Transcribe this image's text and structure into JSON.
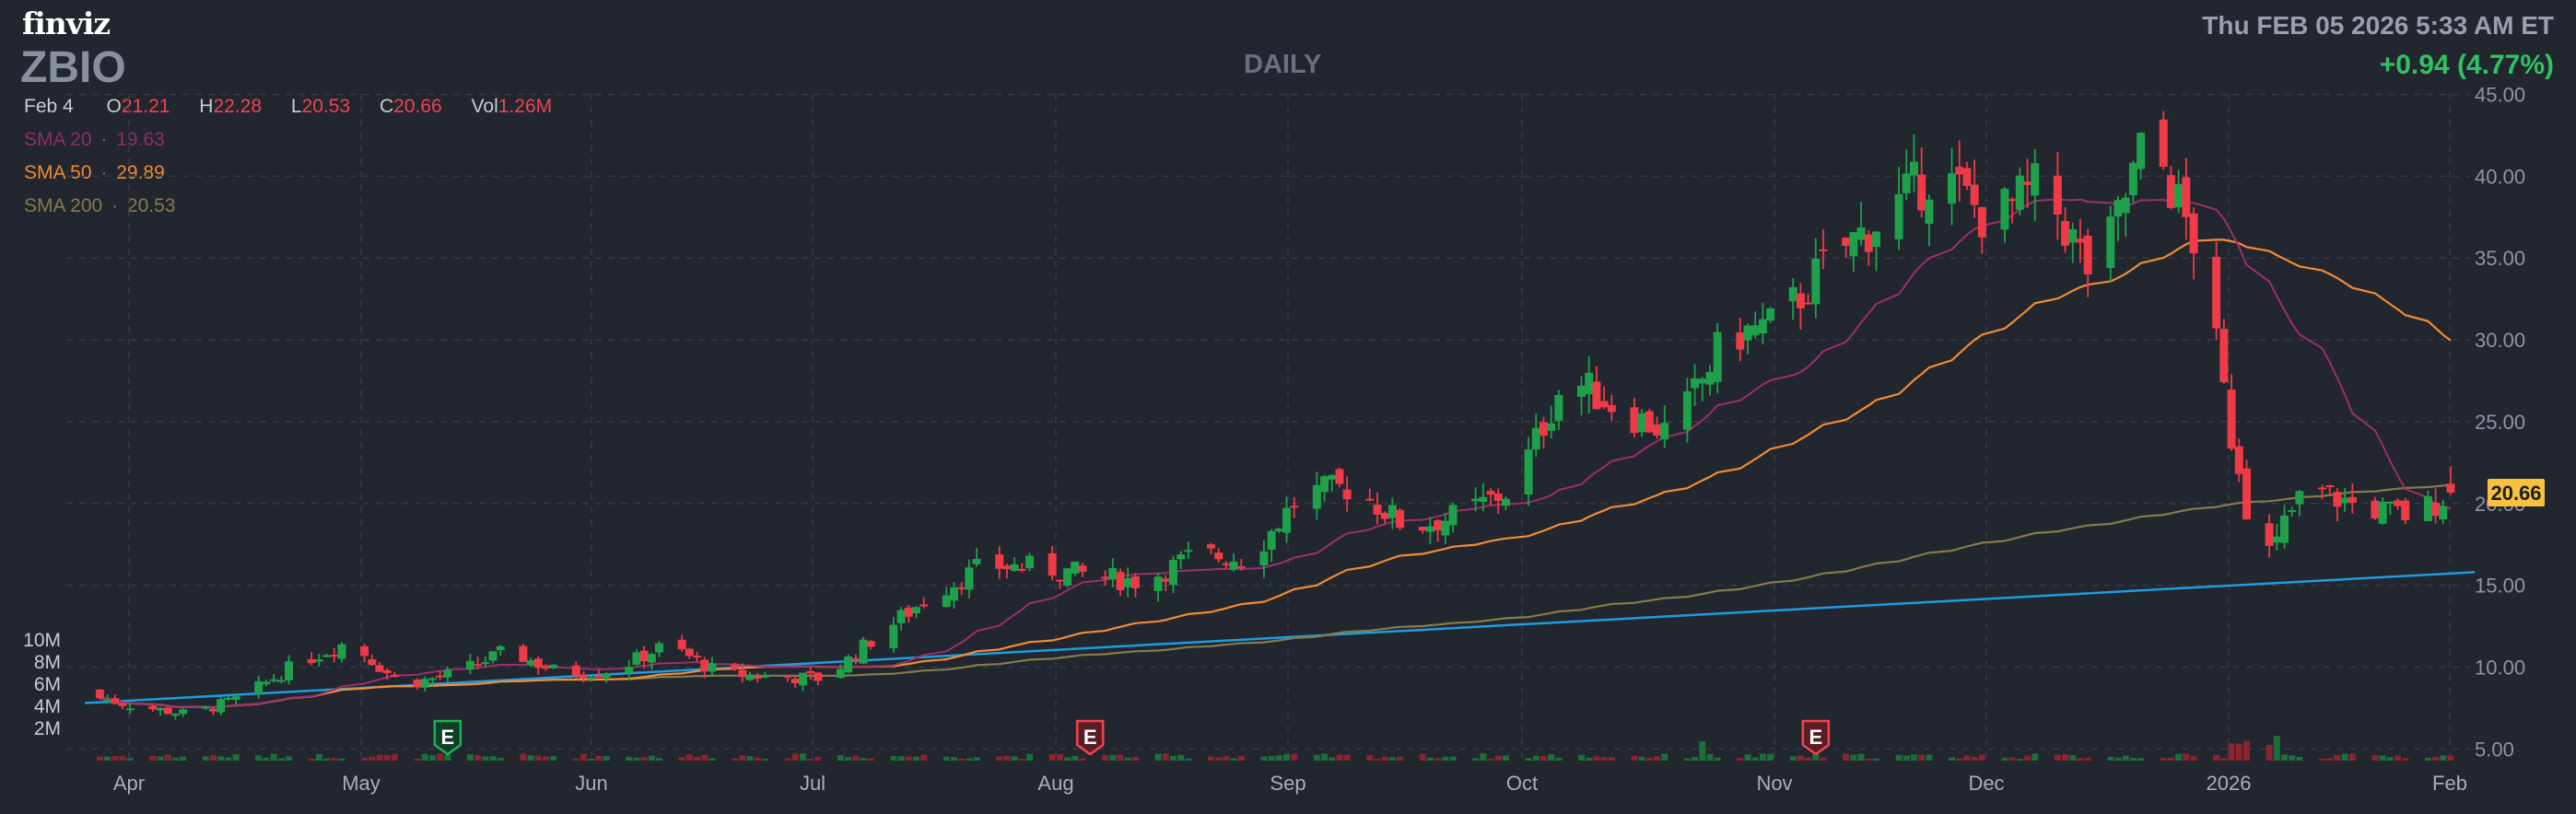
{
  "header": {
    "logo": "finviz",
    "ticker": "ZBIO",
    "timeframe": "DAILY",
    "datetime": "Thu FEB 05 2026 5:33 AM ET",
    "change": "+0.94 (4.77%)"
  },
  "ohlc": {
    "date": "Feb 4",
    "o_label": "O",
    "o": "21.21",
    "h_label": "H",
    "h": "22.28",
    "l_label": "L",
    "l": "20.53",
    "c_label": "C",
    "c": "20.66",
    "vol_label": "Vol",
    "vol": "1.26M"
  },
  "sma": [
    {
      "label": "SMA 20",
      "sep": "·",
      "value": "19.63",
      "color": "#9c2f6c"
    },
    {
      "label": "SMA 50",
      "sep": "·",
      "value": "29.89",
      "color": "#f38b34"
    },
    {
      "label": "SMA 200",
      "sep": "·",
      "value": "20.53",
      "color": "#857b4c"
    }
  ],
  "colors": {
    "up": "#1fa14c",
    "down": "#ee3b47",
    "trendline": "#1c9de0",
    "price_tag": "#f7c23a"
  },
  "chart_data": {
    "type": "candlestick",
    "ylim": [
      4.2,
      45
    ],
    "y_ticks": [
      "45.00",
      "40.00",
      "35.00",
      "30.00",
      "25.00",
      "20.00",
      "15.00",
      "10.00",
      "5.00"
    ],
    "volume_ticks": [
      "10M",
      "8M",
      "6M",
      "4M",
      "2M"
    ],
    "x_labels": [
      "Apr",
      "May",
      "Jun",
      "Jul",
      "Aug",
      "Sep",
      "Oct",
      "Nov",
      "Dec",
      "2026",
      "Feb"
    ],
    "last_price": "20.66",
    "earnings_marker": "E",
    "earnings": [
      {
        "month": "May",
        "day": 15,
        "result": "beat"
      },
      {
        "month": "Aug",
        "day": 8,
        "result": "miss"
      },
      {
        "month": "Nov",
        "day": 12,
        "result": "miss"
      }
    ],
    "trendline": [
      {
        "date": "Mar 28",
        "price": 7.8
      },
      {
        "date": "Feb 5",
        "price": 15.8
      }
    ],
    "weekly_closes": [
      {
        "week": "Mar 28",
        "close": 8.3
      },
      {
        "week": "Apr 4",
        "close": 7.6
      },
      {
        "week": "Apr 11",
        "close": 7.1
      },
      {
        "week": "Apr 18",
        "close": 8.2
      },
      {
        "week": "Apr 25",
        "close": 10.2
      },
      {
        "week": "May 2",
        "close": 11.6
      },
      {
        "week": "May 9",
        "close": 8.9
      },
      {
        "week": "May 16",
        "close": 9.6
      },
      {
        "week": "May 23",
        "close": 11.0
      },
      {
        "week": "May 30",
        "close": 9.6
      },
      {
        "week": "Jun 6",
        "close": 9.8
      },
      {
        "week": "Jun 13",
        "close": 11.4
      },
      {
        "week": "Jun 20",
        "close": 9.6
      },
      {
        "week": "Jun 27",
        "close": 9.4
      },
      {
        "week": "Jul 4",
        "close": 9.3
      },
      {
        "week": "Jul 11",
        "close": 12.0
      },
      {
        "week": "Jul 18",
        "close": 14.4
      },
      {
        "week": "Jul 25",
        "close": 16.2
      },
      {
        "week": "Aug 1",
        "close": 16.1
      },
      {
        "week": "Aug 8",
        "close": 15.6
      },
      {
        "week": "Aug 15",
        "close": 15.2
      },
      {
        "week": "Aug 22",
        "close": 16.9
      },
      {
        "week": "Aug 29",
        "close": 16.6
      },
      {
        "week": "Sep 5",
        "close": 20.6
      },
      {
        "week": "Sep 12",
        "close": 21.0
      },
      {
        "week": "Sep 19",
        "close": 18.5
      },
      {
        "week": "Sep 26",
        "close": 19.3
      },
      {
        "week": "Oct 3",
        "close": 20.9
      },
      {
        "week": "Oct 10",
        "close": 27.8
      },
      {
        "week": "Oct 17",
        "close": 25.8
      },
      {
        "week": "Oct 24",
        "close": 24.2
      },
      {
        "week": "Oct 31",
        "close": 30.1
      },
      {
        "week": "Nov 7",
        "close": 31.0
      },
      {
        "week": "Nov 14",
        "close": 35.0
      },
      {
        "week": "Nov 21",
        "close": 37.5
      },
      {
        "week": "Nov 28",
        "close": 40.4
      },
      {
        "week": "Dec 5",
        "close": 37.2
      },
      {
        "week": "Dec 12",
        "close": 39.5
      },
      {
        "week": "Dec 19",
        "close": 33.5
      },
      {
        "week": "Dec 26",
        "close": 42.7
      },
      {
        "week": "Jan 2",
        "close": 35.0
      },
      {
        "week": "Jan 9",
        "close": 15.8
      },
      {
        "week": "Jan 16",
        "close": 21.0
      },
      {
        "week": "Jan 23",
        "close": 19.8
      },
      {
        "week": "Jan 30",
        "close": 19.2
      },
      {
        "week": "Feb 4",
        "close": 20.66
      }
    ]
  }
}
